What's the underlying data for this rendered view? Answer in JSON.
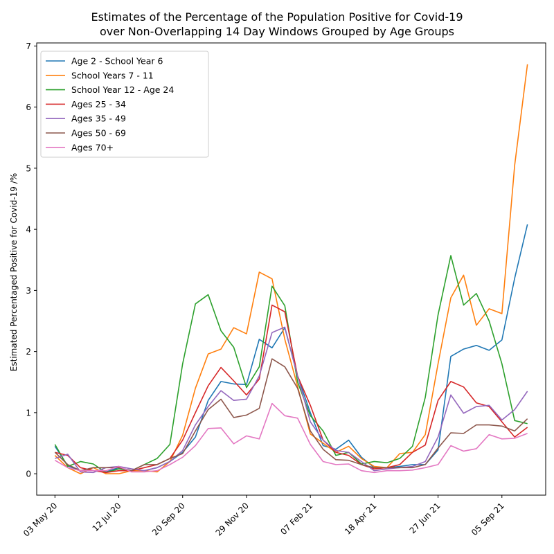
{
  "chart_data": {
    "type": "line",
    "title": [
      "Estimates of the Percentage of the Population Positive for Covid-19",
      "over Non-Overlapping 14 Day Windows Grouped by Age Groups"
    ],
    "xlabel": "",
    "ylabel": "Estimated Percentaged Positive for Covid-19 /%",
    "x_tick_labels": [
      "03 May 20",
      "12 Jul 20",
      "20 Sep 20",
      "29 Nov 20",
      "07 Feb 21",
      "18 Apr 21",
      "27 Jun 21",
      "05 Sep 21"
    ],
    "x_tick_dates": [
      "2020-05-03",
      "2020-07-12",
      "2020-09-20",
      "2020-11-29",
      "2021-02-07",
      "2021-04-18",
      "2021-06-27",
      "2021-09-05"
    ],
    "x": [
      "2020-05-03",
      "2020-05-17",
      "2020-05-31",
      "2020-06-14",
      "2020-06-28",
      "2020-07-12",
      "2020-07-26",
      "2020-08-09",
      "2020-08-23",
      "2020-09-06",
      "2020-09-20",
      "2020-10-04",
      "2020-10-18",
      "2020-11-01",
      "2020-11-15",
      "2020-11-29",
      "2020-12-13",
      "2020-12-27",
      "2021-01-10",
      "2021-01-24",
      "2021-02-07",
      "2021-02-21",
      "2021-03-07",
      "2021-03-21",
      "2021-04-04",
      "2021-04-18",
      "2021-05-02",
      "2021-05-16",
      "2021-05-30",
      "2021-06-13",
      "2021-06-27",
      "2021-07-11",
      "2021-07-25",
      "2021-08-08",
      "2021-08-22",
      "2021-09-05",
      "2021-09-19",
      "2021-10-03"
    ],
    "yticks": [
      0,
      1,
      2,
      3,
      4,
      5,
      6,
      7
    ],
    "ylim": [
      -0.35,
      7.05
    ],
    "legend_position": "upper-left",
    "grid": false,
    "series": [
      {
        "name": "Age 2 - School Year 6",
        "color": "#1f77b4",
        "values": [
          0.45,
          0.13,
          0.05,
          0.05,
          0.03,
          0.1,
          0.05,
          0.05,
          0.1,
          0.2,
          0.35,
          0.6,
          1.2,
          1.51,
          1.47,
          1.46,
          2.2,
          2.06,
          2.39,
          1.6,
          1.0,
          0.46,
          0.4,
          0.55,
          0.27,
          0.1,
          0.1,
          0.12,
          0.15,
          0.15,
          0.39,
          1.92,
          2.04,
          2.1,
          2.02,
          2.19,
          3.2,
          4.08
        ]
      },
      {
        "name": "School Years 7 - 11",
        "color": "#ff7f0e",
        "values": [
          0.3,
          0.1,
          0.0,
          0.1,
          0.0,
          0.0,
          0.05,
          0.05,
          0.03,
          0.2,
          0.63,
          1.4,
          1.96,
          2.04,
          2.39,
          2.29,
          3.3,
          3.19,
          2.2,
          1.43,
          0.65,
          0.5,
          0.35,
          0.45,
          0.25,
          0.12,
          0.1,
          0.33,
          0.35,
          0.64,
          1.8,
          2.88,
          3.25,
          2.43,
          2.7,
          2.62,
          5.05,
          6.7
        ]
      },
      {
        "name": "School Year 12 - Age 24",
        "color": "#2ca02c",
        "values": [
          0.48,
          0.12,
          0.2,
          0.16,
          0.02,
          0.08,
          0.05,
          0.15,
          0.25,
          0.48,
          1.8,
          2.78,
          2.93,
          2.34,
          2.07,
          1.41,
          1.75,
          3.07,
          2.75,
          1.5,
          0.95,
          0.7,
          0.3,
          0.35,
          0.16,
          0.2,
          0.18,
          0.25,
          0.45,
          1.25,
          2.6,
          3.57,
          2.76,
          2.95,
          2.5,
          1.8,
          0.87,
          0.82
        ]
      },
      {
        "name": "Ages 25 - 34",
        "color": "#d62728",
        "values": [
          0.35,
          0.3,
          0.1,
          0.05,
          0.02,
          0.05,
          0.05,
          0.1,
          0.15,
          0.25,
          0.55,
          1.0,
          1.44,
          1.74,
          1.52,
          1.29,
          1.55,
          2.76,
          2.65,
          1.6,
          1.12,
          0.55,
          0.35,
          0.3,
          0.15,
          0.08,
          0.1,
          0.15,
          0.35,
          0.47,
          1.2,
          1.51,
          1.42,
          1.16,
          1.1,
          0.85,
          0.6,
          0.76
        ]
      },
      {
        "name": "Ages 35 - 49",
        "color": "#9467bd",
        "values": [
          0.25,
          0.32,
          0.03,
          0.02,
          0.1,
          0.12,
          0.08,
          0.05,
          0.1,
          0.2,
          0.38,
          0.8,
          1.1,
          1.36,
          1.2,
          1.22,
          1.6,
          2.31,
          2.4,
          1.6,
          0.85,
          0.55,
          0.38,
          0.35,
          0.2,
          0.05,
          0.08,
          0.1,
          0.12,
          0.2,
          0.6,
          1.29,
          0.99,
          1.1,
          1.12,
          0.88,
          1.05,
          1.35
        ]
      },
      {
        "name": "Ages 50 - 69",
        "color": "#8c564b",
        "values": [
          0.35,
          0.15,
          0.05,
          0.1,
          0.1,
          0.1,
          0.05,
          0.15,
          0.15,
          0.25,
          0.33,
          0.7,
          1.05,
          1.22,
          0.92,
          0.96,
          1.07,
          1.88,
          1.75,
          1.4,
          0.7,
          0.4,
          0.23,
          0.22,
          0.15,
          0.1,
          0.1,
          0.1,
          0.1,
          0.15,
          0.42,
          0.67,
          0.66,
          0.8,
          0.8,
          0.78,
          0.7,
          0.9
        ]
      },
      {
        "name": "Ages 70+",
        "color": "#e377c2",
        "values": [
          0.22,
          0.1,
          0.05,
          0.05,
          0.05,
          0.12,
          0.03,
          0.03,
          0.05,
          0.15,
          0.27,
          0.46,
          0.74,
          0.75,
          0.49,
          0.62,
          0.57,
          1.15,
          0.95,
          0.91,
          0.48,
          0.2,
          0.15,
          0.16,
          0.05,
          0.02,
          0.05,
          0.05,
          0.06,
          0.1,
          0.15,
          0.46,
          0.37,
          0.41,
          0.64,
          0.57,
          0.58,
          0.66
        ]
      }
    ]
  }
}
